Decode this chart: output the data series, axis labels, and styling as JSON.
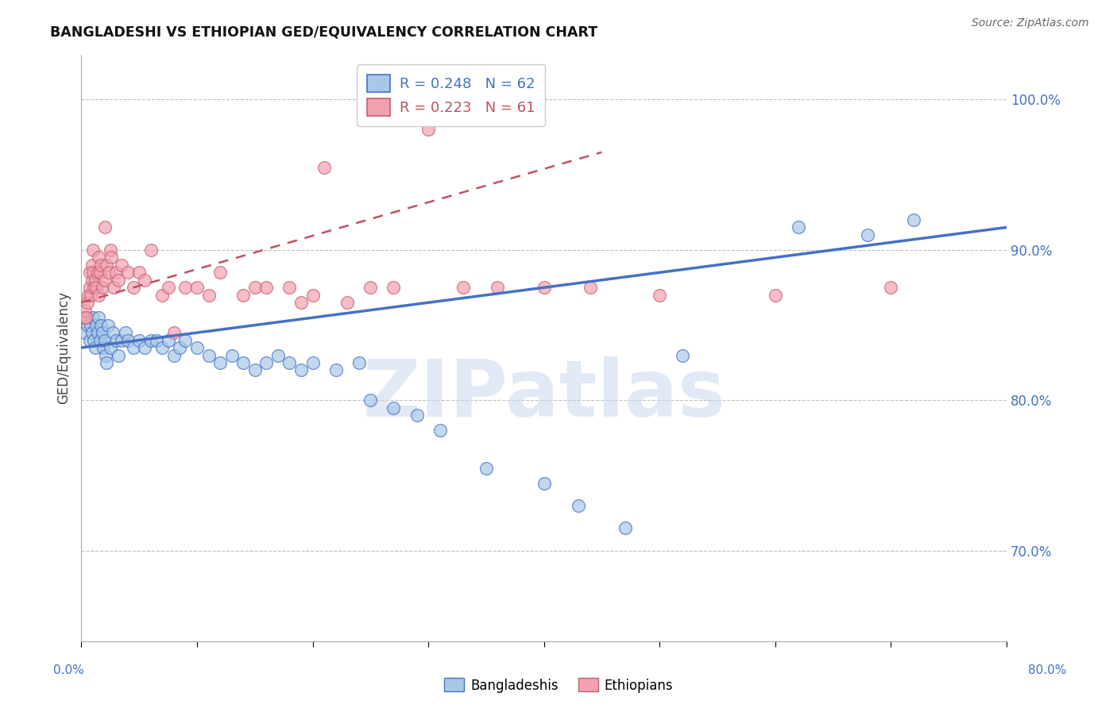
{
  "title": "BANGLADESHI VS ETHIOPIAN GED/EQUIVALENCY CORRELATION CHART",
  "source": "Source: ZipAtlas.com",
  "ylabel": "GED/Equivalency",
  "xlim": [
    0.0,
    80.0
  ],
  "ylim": [
    64.0,
    103.0
  ],
  "ytick_vals": [
    70.0,
    80.0,
    90.0,
    100.0
  ],
  "legend_blue_r": "R = 0.248",
  "legend_blue_n": "N = 62",
  "legend_pink_r": "R = 0.223",
  "legend_pink_n": "N = 61",
  "blue_fill": "#A8C8E8",
  "blue_edge": "#4472C4",
  "pink_fill": "#F4A0B0",
  "pink_edge": "#C06070",
  "trendline_blue": "#4472C4",
  "trendline_pink": "#C05060",
  "watermark_color": "#C8D8EE",
  "blue_scatter_x": [
    0.3,
    0.5,
    0.6,
    0.7,
    0.8,
    0.9,
    1.0,
    1.1,
    1.2,
    1.3,
    1.4,
    1.5,
    1.6,
    1.7,
    1.8,
    1.9,
    2.0,
    2.1,
    2.2,
    2.3,
    2.5,
    2.7,
    3.0,
    3.2,
    3.5,
    3.8,
    4.0,
    4.5,
    5.0,
    5.5,
    6.0,
    6.5,
    7.0,
    7.5,
    8.0,
    8.5,
    9.0,
    10.0,
    11.0,
    12.0,
    13.0,
    14.0,
    15.0,
    16.0,
    17.0,
    18.0,
    19.0,
    20.0,
    22.0,
    24.0,
    25.0,
    27.0,
    29.0,
    31.0,
    35.0,
    40.0,
    43.0,
    47.0,
    52.0,
    62.0,
    68.0,
    72.0
  ],
  "blue_scatter_y": [
    84.5,
    85.0,
    85.5,
    84.0,
    85.0,
    84.5,
    85.5,
    84.0,
    83.5,
    85.0,
    84.5,
    85.5,
    84.0,
    85.0,
    84.5,
    83.5,
    84.0,
    83.0,
    82.5,
    85.0,
    83.5,
    84.5,
    84.0,
    83.0,
    84.0,
    84.5,
    84.0,
    83.5,
    84.0,
    83.5,
    84.0,
    84.0,
    83.5,
    84.0,
    83.0,
    83.5,
    84.0,
    83.5,
    83.0,
    82.5,
    83.0,
    82.5,
    82.0,
    82.5,
    83.0,
    82.5,
    82.0,
    82.5,
    82.0,
    82.5,
    80.0,
    79.5,
    79.0,
    78.0,
    75.5,
    74.5,
    73.0,
    71.5,
    83.0,
    91.5,
    91.0,
    92.0
  ],
  "pink_scatter_x": [
    0.2,
    0.3,
    0.4,
    0.5,
    0.6,
    0.7,
    0.7,
    0.8,
    0.9,
    0.9,
    1.0,
    1.0,
    1.1,
    1.2,
    1.3,
    1.4,
    1.5,
    1.5,
    1.6,
    1.7,
    1.8,
    2.0,
    2.0,
    2.2,
    2.4,
    2.5,
    2.6,
    2.8,
    3.0,
    3.2,
    3.5,
    4.0,
    4.5,
    5.0,
    5.5,
    6.0,
    7.0,
    7.5,
    8.0,
    9.0,
    10.0,
    11.0,
    12.0,
    14.0,
    15.0,
    16.0,
    18.0,
    19.0,
    20.0,
    21.0,
    23.0,
    25.0,
    27.0,
    30.0,
    33.0,
    36.0,
    40.0,
    44.0,
    50.0,
    60.0,
    70.0
  ],
  "pink_scatter_y": [
    85.5,
    86.0,
    85.5,
    86.5,
    87.0,
    87.5,
    88.5,
    87.0,
    88.0,
    89.0,
    88.5,
    90.0,
    87.5,
    88.0,
    87.5,
    88.5,
    87.0,
    89.5,
    88.5,
    89.0,
    87.5,
    88.0,
    91.5,
    89.0,
    88.5,
    90.0,
    89.5,
    87.5,
    88.5,
    88.0,
    89.0,
    88.5,
    87.5,
    88.5,
    88.0,
    90.0,
    87.0,
    87.5,
    84.5,
    87.5,
    87.5,
    87.0,
    88.5,
    87.0,
    87.5,
    87.5,
    87.5,
    86.5,
    87.0,
    95.5,
    86.5,
    87.5,
    87.5,
    98.0,
    87.5,
    87.5,
    87.5,
    87.5,
    87.0,
    87.0,
    87.5
  ],
  "blue_trend_x": [
    0.0,
    80.0
  ],
  "blue_trend_y": [
    83.5,
    91.5
  ],
  "pink_trend_x": [
    0.0,
    45.0
  ],
  "pink_trend_y": [
    86.5,
    96.5
  ]
}
